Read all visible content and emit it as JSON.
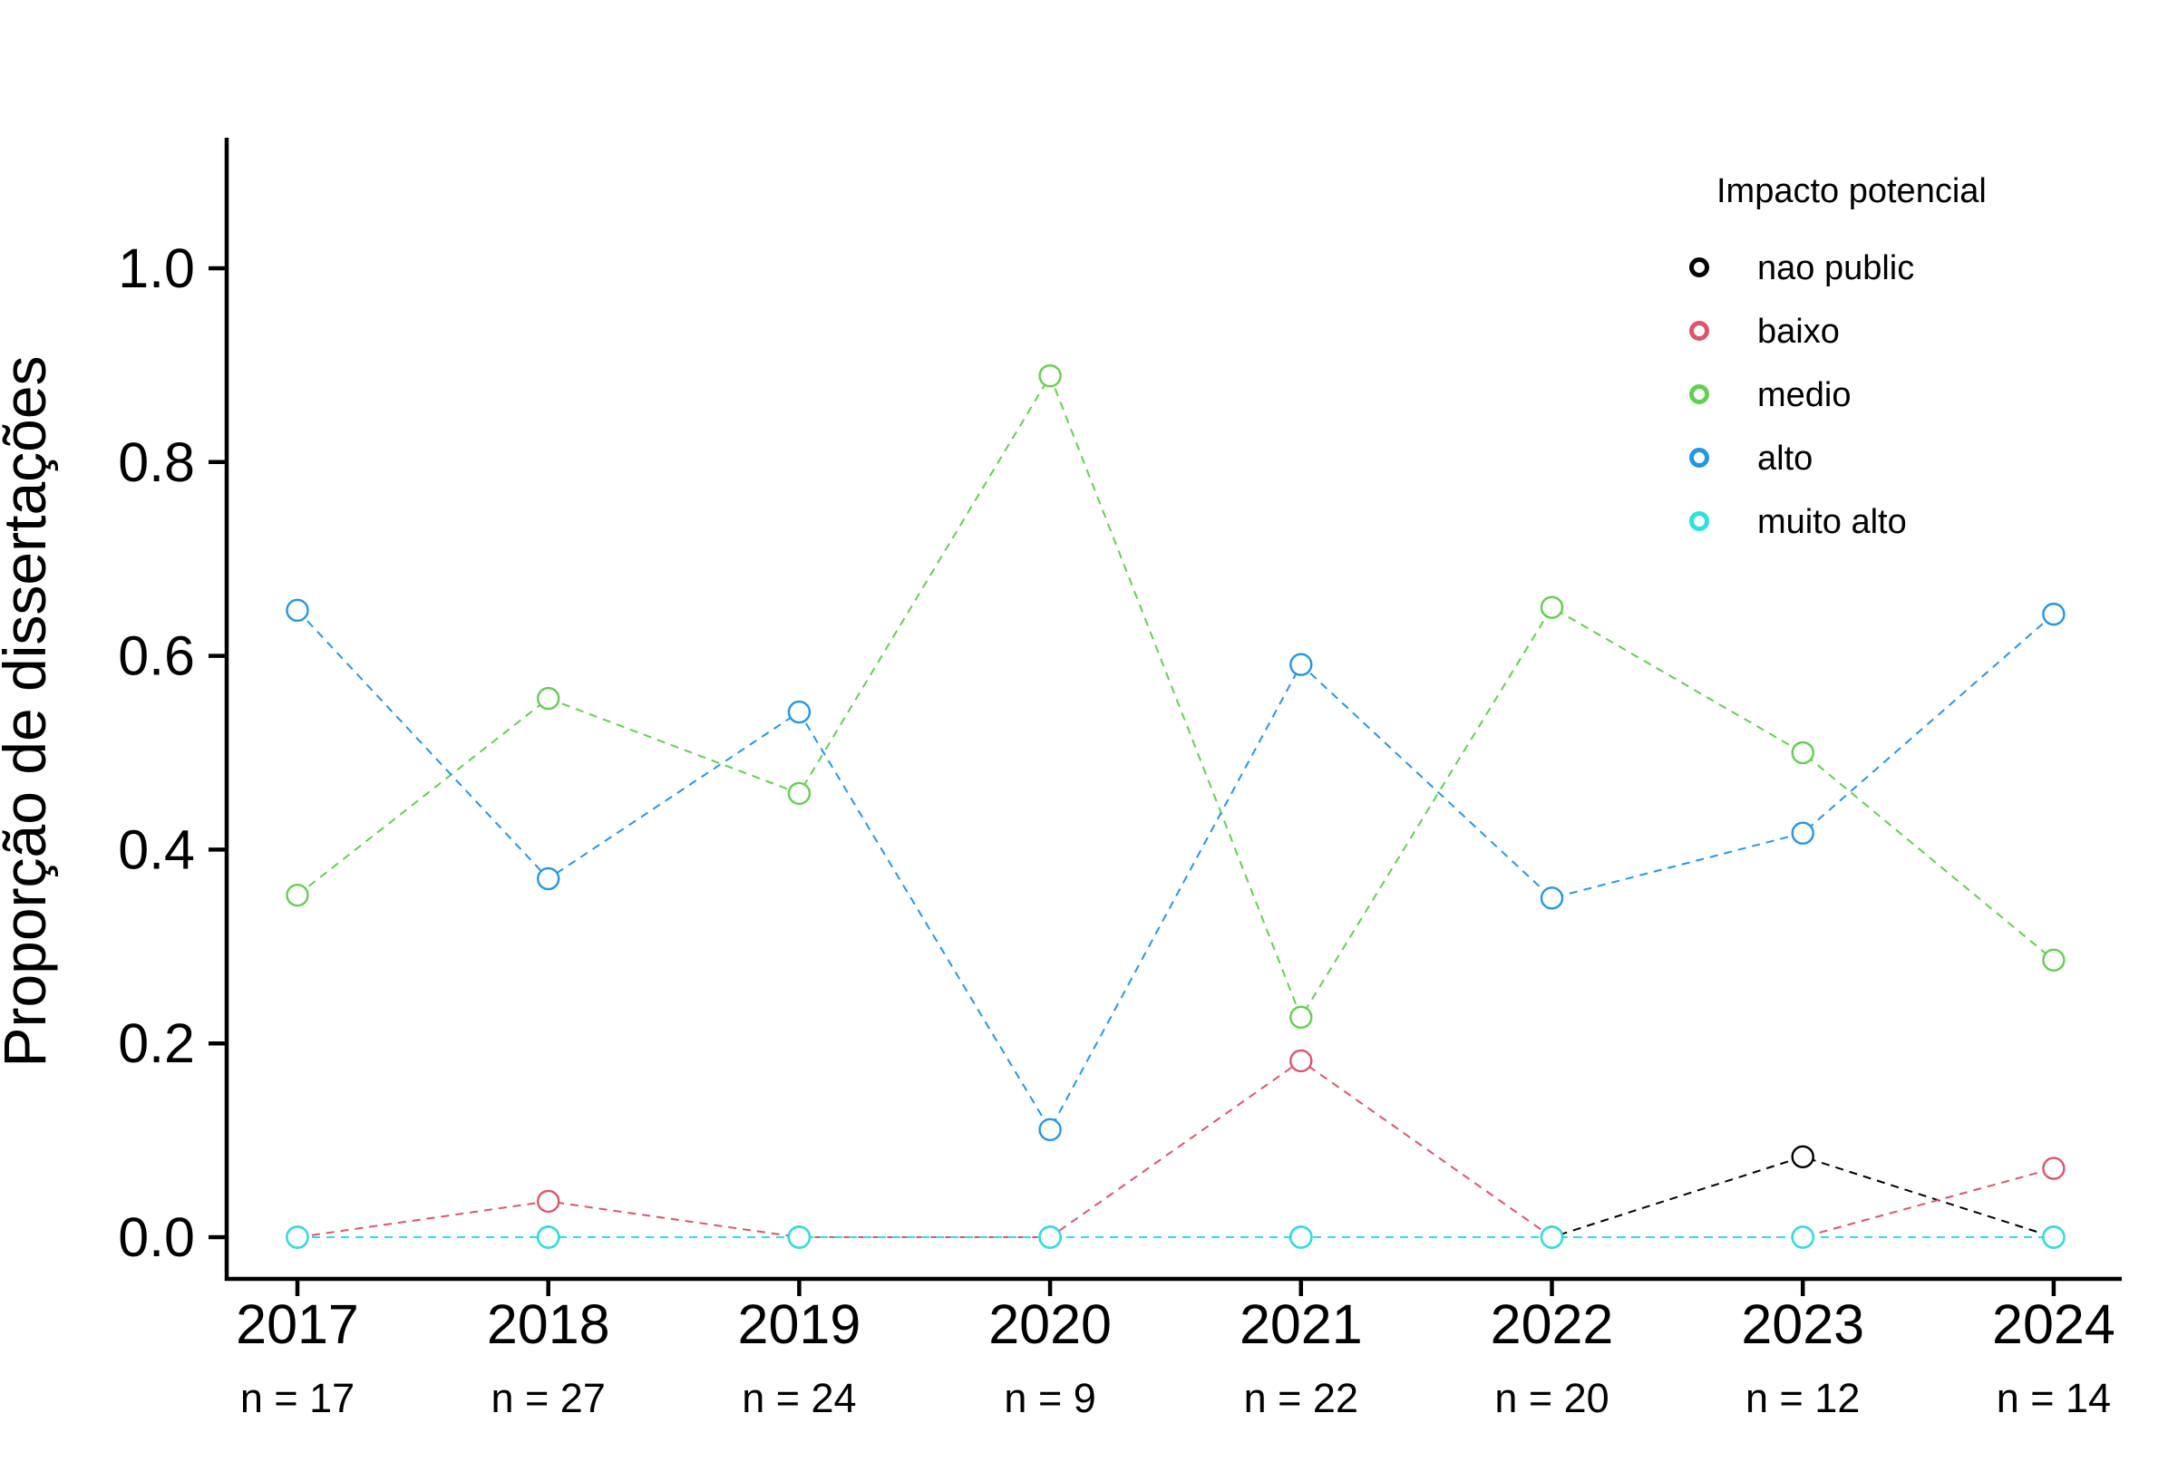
{
  "chart_data": {
    "type": "line",
    "title": "",
    "xlabel": "",
    "ylabel": "Proporção de dissertações",
    "categories": [
      "2017",
      "2018",
      "2019",
      "2020",
      "2021",
      "2022",
      "2023",
      "2024"
    ],
    "n_labels": [
      "n =  17",
      "n =  27",
      "n =  24",
      "n =  9",
      "n =  22",
      "n =  20",
      "n =  12",
      "n =  14"
    ],
    "ylim": [
      -0.04,
      1.13
    ],
    "yticks": [
      0.0,
      0.2,
      0.4,
      0.6,
      0.8,
      1.0
    ],
    "ytick_labels": [
      "0.0",
      "0.2",
      "0.4",
      "0.6",
      "0.8",
      "1.0"
    ],
    "grid": false,
    "legend": {
      "title": "Impacto potencial",
      "placement": "top-right"
    },
    "series": [
      {
        "name": "nao public",
        "color": "#000000",
        "values": [
          0,
          0,
          0,
          0,
          0,
          0,
          0.083,
          0
        ]
      },
      {
        "name": "baixo",
        "color": "#DF536B",
        "values": [
          0,
          0.037,
          0,
          0,
          0.182,
          0,
          0,
          0.071
        ]
      },
      {
        "name": "medio",
        "color": "#61D04F",
        "values": [
          0.353,
          0.556,
          0.458,
          0.889,
          0.227,
          0.65,
          0.5,
          0.286
        ]
      },
      {
        "name": "alto",
        "color": "#2297E6",
        "values": [
          0.647,
          0.37,
          0.542,
          0.111,
          0.591,
          0.35,
          0.417,
          0.643
        ]
      },
      {
        "name": "muito alto",
        "color": "#28E2E5",
        "values": [
          0,
          0,
          0,
          0,
          0,
          0,
          0,
          0
        ]
      }
    ]
  }
}
